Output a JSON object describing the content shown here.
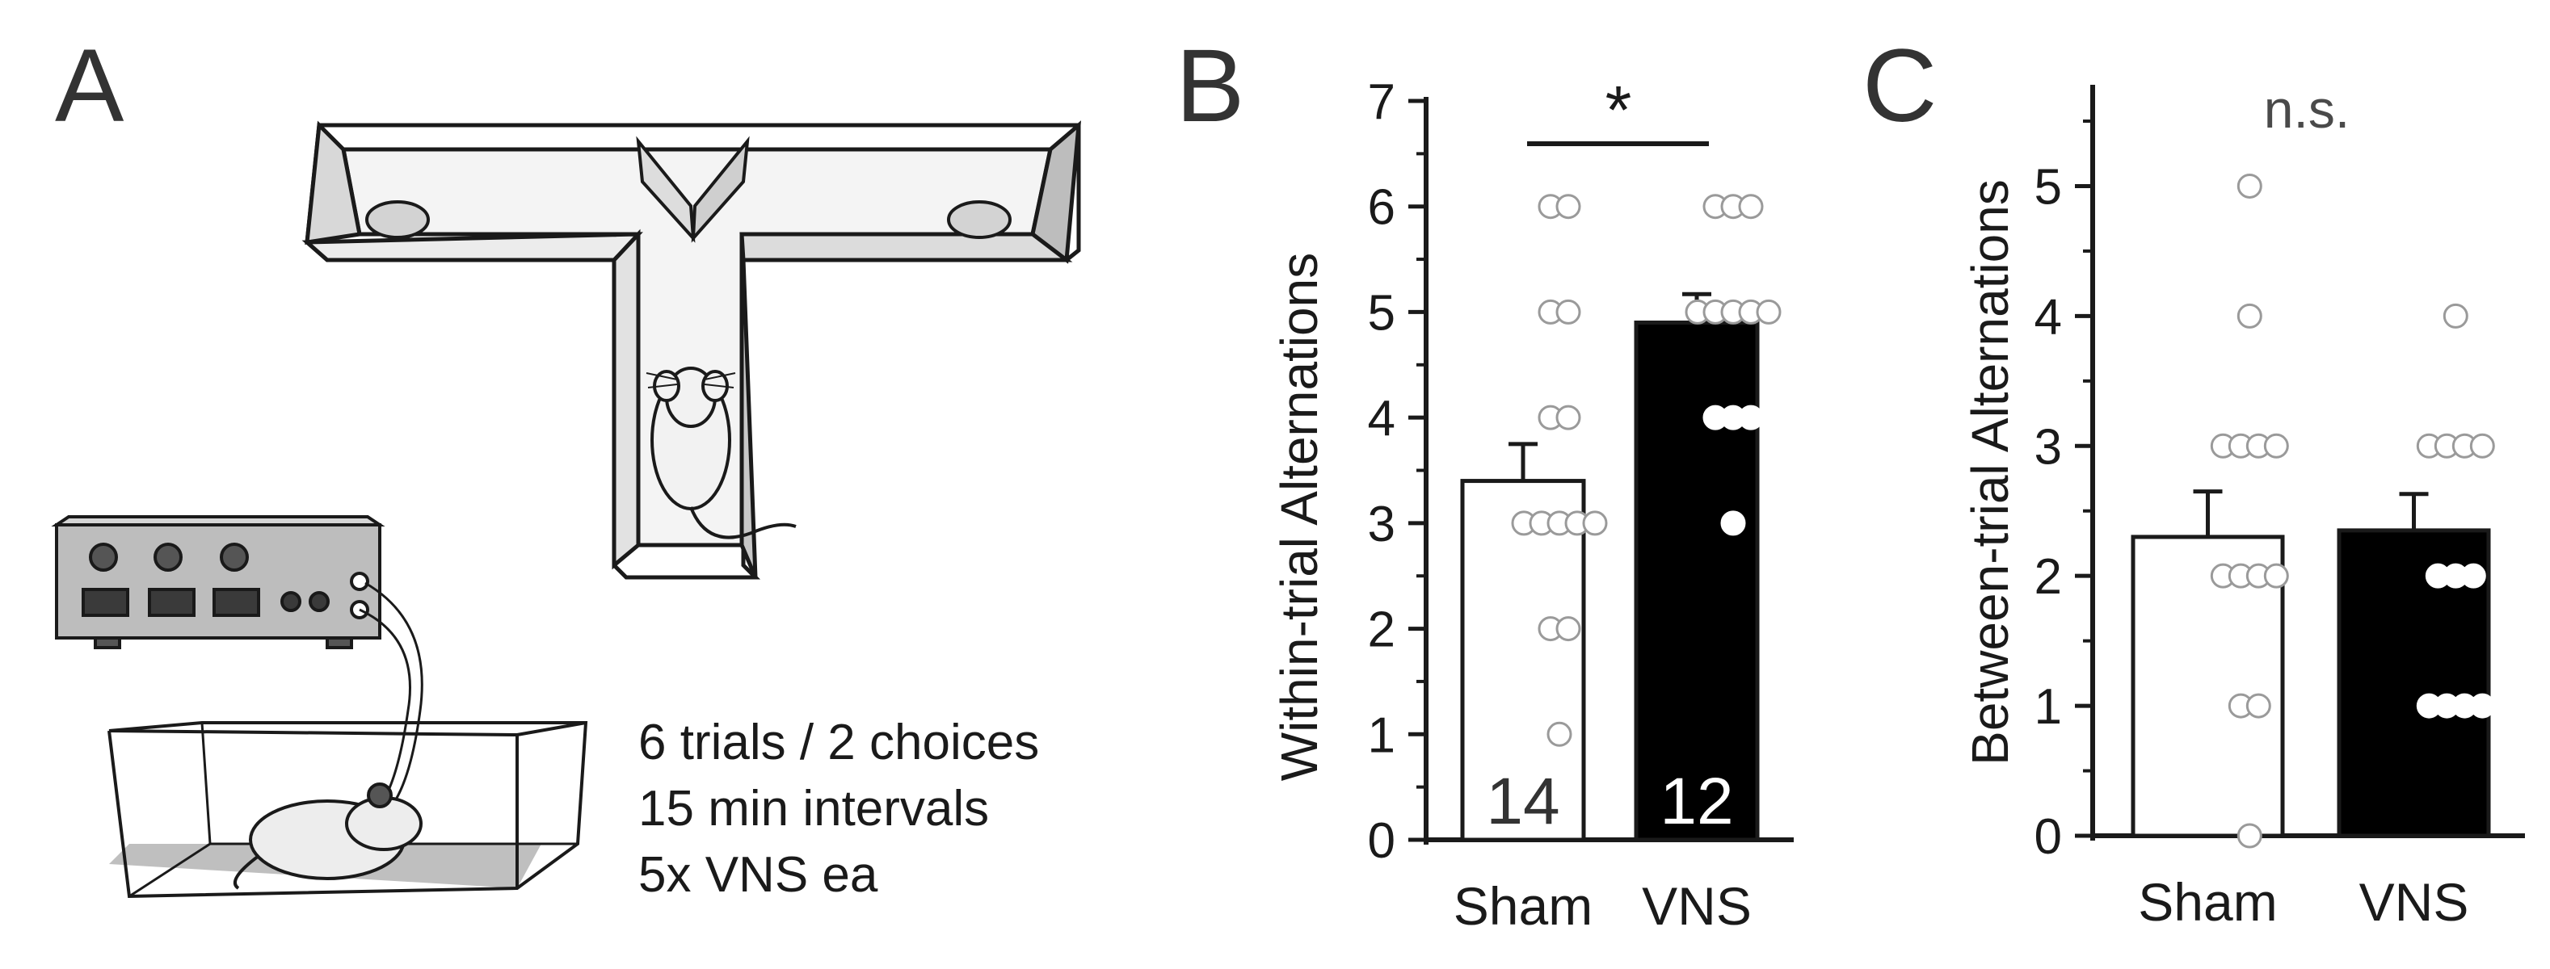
{
  "figure": {
    "panels": {
      "A": {
        "letter": "A",
        "protocol": [
          "6 trials / 2 choices",
          "15 min intervals",
          "5x VNS ea"
        ],
        "pictogram": [
          "t-maze-icon",
          "mouse-icon",
          "stimulator-icon",
          "cage-icon"
        ]
      },
      "B": {
        "letter": "B",
        "significance": "*"
      },
      "C": {
        "letter": "C",
        "significance": "n.s."
      }
    },
    "colors": {
      "sham_bar": "#ffffff",
      "vns_bar": "#000000",
      "axis": "#1a1a1a",
      "point_edge": "#9a9a9a"
    }
  },
  "chart_data": [
    {
      "type": "bar",
      "panel": "B",
      "categories": [
        "Sham",
        "VNS"
      ],
      "ylabel": "Within-trial Alternations",
      "ylim": [
        0,
        7
      ],
      "yticks": [
        "0",
        "1",
        "2",
        "3",
        "4",
        "5",
        "6",
        "7"
      ],
      "values": [
        3.4,
        4.9
      ],
      "errors": [
        0.35,
        0.27
      ],
      "n_labels": [
        "14",
        "12"
      ],
      "points": [
        [
          6,
          6,
          5,
          5,
          4,
          4,
          3,
          3,
          3,
          3,
          3,
          2,
          2,
          1
        ],
        [
          6,
          6,
          6,
          5,
          5,
          5,
          5,
          5,
          4,
          4,
          4,
          3
        ]
      ],
      "significance": "*"
    },
    {
      "type": "bar",
      "panel": "C",
      "categories": [
        "Sham",
        "VNS"
      ],
      "ylabel": "Between-trial Alternations",
      "ylim": [
        0,
        5.5
      ],
      "yticks": [
        "0",
        "1",
        "2",
        "3",
        "4",
        "5"
      ],
      "values": [
        2.3,
        2.35
      ],
      "errors": [
        0.35,
        0.28
      ],
      "points": [
        [
          5,
          4,
          3,
          3,
          3,
          3,
          2,
          2,
          2,
          2,
          1,
          1,
          0
        ],
        [
          4,
          3,
          3,
          3,
          3,
          2,
          2,
          2,
          1,
          1,
          1,
          1
        ]
      ],
      "significance": "n.s."
    }
  ]
}
